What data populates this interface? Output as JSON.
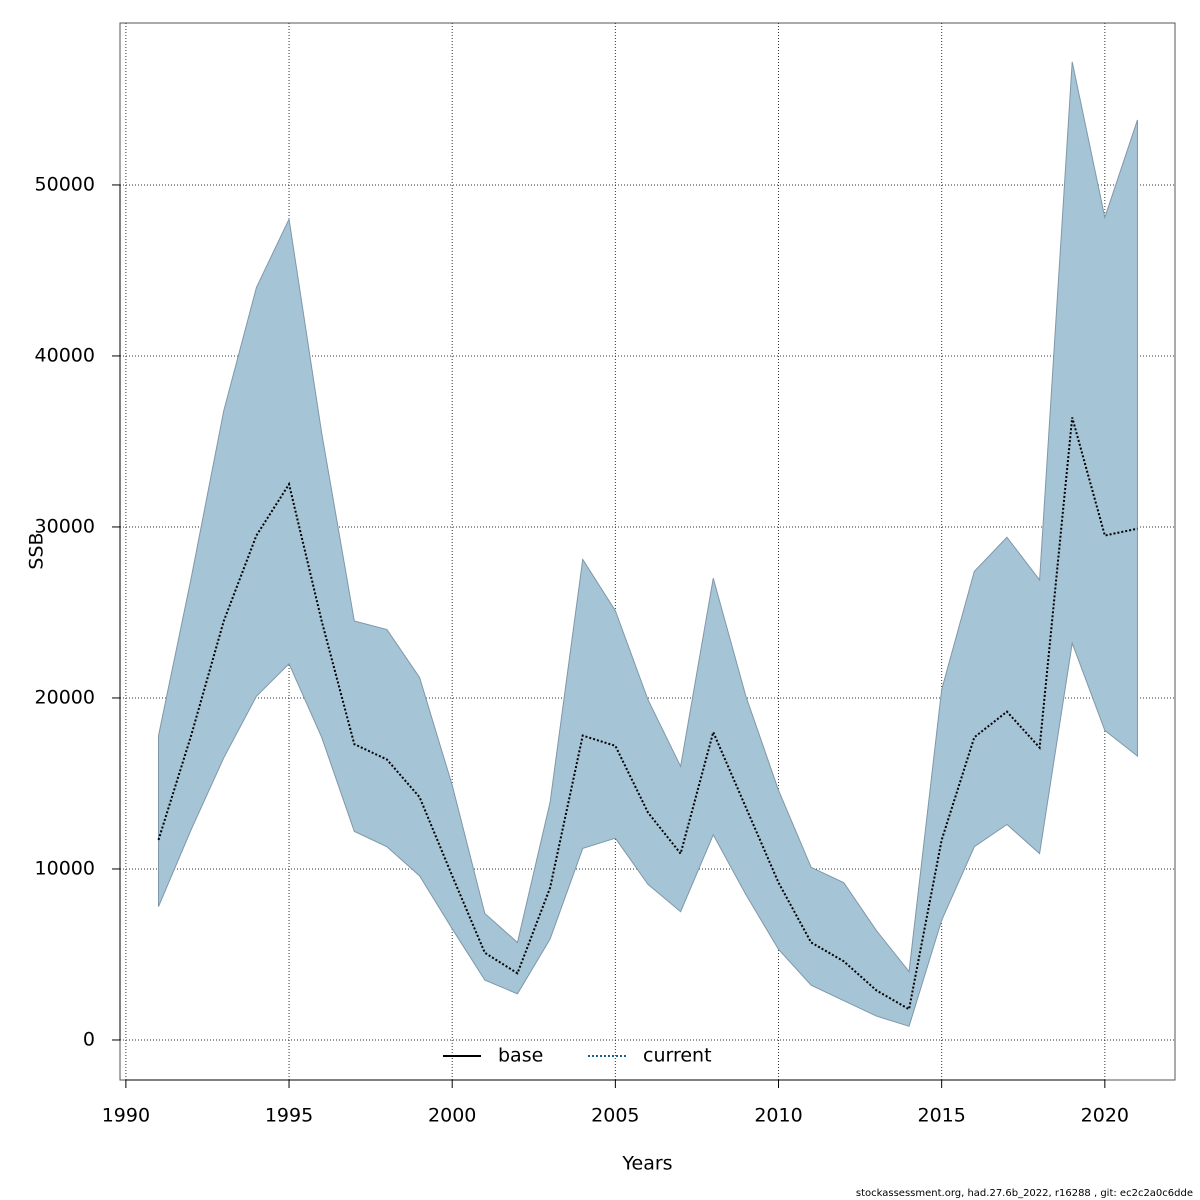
{
  "chart_data": {
    "type": "band-line",
    "x_label": "Years",
    "y_label": "SSB",
    "footer": "stockassessment.org, had.27.6b_2022, r16288 , git: ec2c2a0c6dde",
    "x": [
      1991,
      1992,
      1993,
      1994,
      1995,
      1996,
      1997,
      1998,
      1999,
      2000,
      2001,
      2002,
      2003,
      2004,
      2005,
      2006,
      2007,
      2008,
      2009,
      2010,
      2011,
      2012,
      2013,
      2014,
      2015,
      2016,
      2017,
      2018,
      2019,
      2020,
      2021
    ],
    "series": [
      {
        "name": "base",
        "color": "#000000",
        "style": "solid"
      },
      {
        "name": "current",
        "color": "#1f5f8b",
        "style": "dotted",
        "values": [
          11700,
          17800,
          24500,
          29500,
          32500,
          24500,
          17300,
          16400,
          14200,
          9600,
          5100,
          3900,
          8900,
          17800,
          17200,
          13300,
          10900,
          18000,
          13600,
          9200,
          5700,
          4600,
          2900,
          1800,
          11700,
          17700,
          19200,
          17100,
          36400,
          29500,
          29900
        ],
        "upper": [
          17800,
          27000,
          36800,
          44000,
          48000,
          35500,
          24500,
          24000,
          21200,
          14900,
          7400,
          5700,
          13900,
          28100,
          25100,
          19900,
          16000,
          27000,
          20100,
          14600,
          10100,
          9200,
          6400,
          4000,
          20500,
          27400,
          29400,
          26900,
          57200,
          48100,
          53800
        ],
        "lower": [
          7800,
          12300,
          16500,
          20100,
          22000,
          17700,
          12200,
          11300,
          9600,
          6500,
          3500,
          2700,
          5900,
          11200,
          11800,
          9100,
          7500,
          12000,
          8500,
          5300,
          3200,
          2300,
          1400,
          800,
          7000,
          11300,
          12600,
          10900,
          23200,
          18100,
          16600
        ],
        "band_color": "#a5c4d6"
      }
    ],
    "xlim": [
      1989.82,
      2022.15
    ],
    "xticks": [
      1990,
      1995,
      2000,
      2005,
      2010,
      2015,
      2020
    ],
    "ylim": [
      -2340,
      59470
    ],
    "yticks": [
      0,
      10000,
      20000,
      30000,
      40000,
      50000
    ],
    "grid": true,
    "legend": "bottom"
  }
}
